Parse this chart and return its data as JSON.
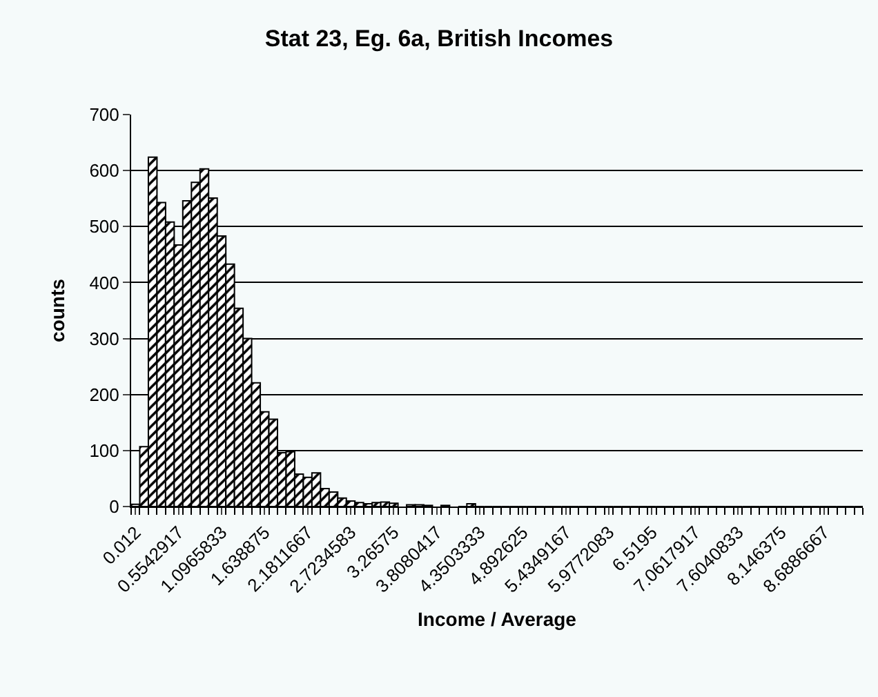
{
  "chart_data": {
    "type": "bar",
    "title": "Stat 23, Eg. 6a, British Incomes",
    "xlabel": "Income / Average",
    "ylabel": "counts",
    "categories": [
      "0.012",
      null,
      null,
      null,
      null,
      "0.5542917",
      null,
      null,
      null,
      null,
      "1.0965833",
      null,
      null,
      null,
      null,
      "1.638875",
      null,
      null,
      null,
      null,
      "2.1811667",
      null,
      null,
      null,
      null,
      "2.7234583",
      null,
      null,
      null,
      null,
      "3.26575",
      null,
      null,
      null,
      null,
      "3.8080417",
      null,
      null,
      null,
      null,
      "4.3503333",
      null,
      null,
      null,
      null,
      "4.892625",
      null,
      null,
      null,
      null,
      "5.4349167",
      null,
      null,
      null,
      null,
      "5.9772083",
      null,
      null,
      null,
      null,
      "6.5195",
      null,
      null,
      null,
      null,
      "7.0617917",
      null,
      null,
      null,
      null,
      "7.6040833",
      null,
      null,
      null,
      null,
      "8.146375",
      null,
      null,
      null,
      null,
      "8.6886667",
      null,
      null,
      null,
      null
    ],
    "values": [
      4,
      107,
      624,
      543,
      508,
      467,
      546,
      579,
      603,
      551,
      483,
      433,
      354,
      300,
      221,
      169,
      156,
      96,
      98,
      58,
      52,
      60,
      32,
      26,
      15,
      10,
      7,
      5,
      7,
      8,
      6,
      null,
      3,
      3,
      2,
      null,
      2,
      null,
      0,
      5,
      0,
      0,
      0,
      0,
      0,
      0,
      0,
      0,
      0,
      0,
      0,
      0,
      0,
      0,
      0,
      0,
      0,
      0,
      0,
      0,
      0,
      0,
      0,
      0,
      0,
      0,
      0,
      0,
      0,
      0,
      0,
      0,
      0,
      0,
      0,
      0,
      0,
      0,
      0,
      0,
      0,
      0,
      0,
      0,
      0
    ],
    "color": "#000000",
    "ylim": [
      0,
      700
    ],
    "yticks": [
      0,
      100,
      200,
      300,
      400,
      500,
      600,
      700
    ],
    "grid": "y"
  }
}
